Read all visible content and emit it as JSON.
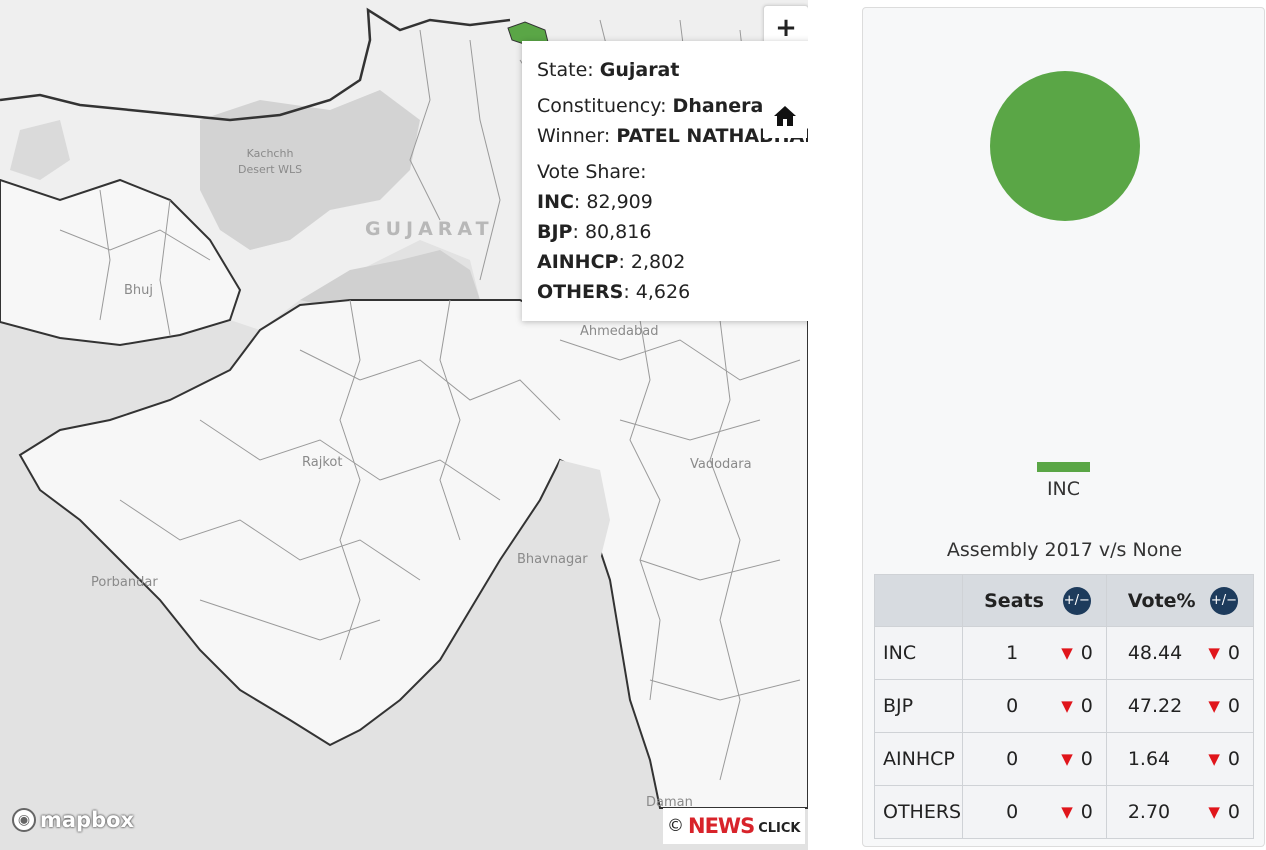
{
  "map": {
    "places": {
      "kachchh": "Kachchh\nDesert WLS",
      "state": "GUJARAT",
      "bhuj": "Bhuj",
      "ahmedabad": "Ahmedabad",
      "rajkot": "Rajkot",
      "vadodara": "Vadodara",
      "bhavnagar": "Bhavnagar",
      "porbandar": "Porbandar",
      "daman": "Daman"
    },
    "zoom_in": "+",
    "zoom_out": "−",
    "attribution": {
      "copyright": "©",
      "brand_a": "NEWS",
      "brand_b": "CLICK",
      "mapbox": "mapbox"
    },
    "highlight_color": "#5aa646"
  },
  "tooltip": {
    "state_label": "State: ",
    "state": "Gujarat",
    "constituency_label": "Constituency: ",
    "constituency": "Dhanera",
    "winner_label": "Winner: ",
    "winner": "PATEL NATHABHAI HEGOLABHAI",
    "vote_share_label": "Vote Share:",
    "votes": [
      {
        "party": "INC",
        "value": "82,909"
      },
      {
        "party": "BJP",
        "value": "80,816"
      },
      {
        "party": "AINHCP",
        "value": "2,802"
      },
      {
        "party": "OTHERS",
        "value": "4,626"
      }
    ]
  },
  "chart_data": {
    "type": "pie",
    "categories": [
      "INC"
    ],
    "values": [
      1
    ],
    "colors": [
      "#5aa646"
    ],
    "legend": [
      "INC"
    ]
  },
  "comparison": {
    "title": "Assembly 2017 v/s None",
    "headers": {
      "party": "",
      "seats": "Seats",
      "vote": "Vote%",
      "toggle": "+/−"
    },
    "rows": [
      {
        "party": "INC",
        "seats": "1",
        "seats_change": "0",
        "vote": "48.44",
        "vote_change": "0"
      },
      {
        "party": "BJP",
        "seats": "0",
        "seats_change": "0",
        "vote": "47.22",
        "vote_change": "0"
      },
      {
        "party": "AINHCP",
        "seats": "0",
        "seats_change": "0",
        "vote": "1.64",
        "vote_change": "0"
      },
      {
        "party": "OTHERS",
        "seats": "0",
        "seats_change": "0",
        "vote": "2.70",
        "vote_change": "0"
      }
    ],
    "down_arrow": "▼"
  }
}
